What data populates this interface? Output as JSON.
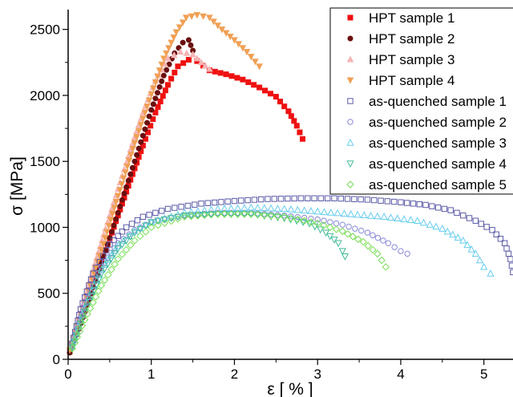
{
  "chart_data": {
    "type": "scatter",
    "title": "",
    "xlabel": "ε [ % ]",
    "ylabel": "σ [MPa]",
    "xlim": [
      0,
      5.35
    ],
    "ylim": [
      0,
      2650
    ],
    "x_ticks": [
      0,
      1,
      2,
      3,
      4,
      5
    ],
    "y_ticks": [
      0,
      500,
      1000,
      1500,
      2000,
      2500
    ],
    "grid": false,
    "legend_position": "top-right",
    "series": [
      {
        "name": "HPT sample 1",
        "color": "#ee1111",
        "marker": "square-filled",
        "points": [
          [
            0.02,
            60
          ],
          [
            0.15,
            280
          ],
          [
            0.3,
            560
          ],
          [
            0.45,
            830
          ],
          [
            0.6,
            1090
          ],
          [
            0.75,
            1360
          ],
          [
            0.9,
            1620
          ],
          [
            1.05,
            1870
          ],
          [
            1.2,
            2080
          ],
          [
            1.32,
            2220
          ],
          [
            1.45,
            2270
          ],
          [
            1.55,
            2260
          ],
          [
            1.7,
            2190
          ],
          [
            1.9,
            2160
          ],
          [
            2.1,
            2120
          ],
          [
            2.3,
            2060
          ],
          [
            2.5,
            1990
          ],
          [
            2.65,
            1880
          ],
          [
            2.75,
            1770
          ],
          [
            2.82,
            1670
          ]
        ]
      },
      {
        "name": "HPT sample 2",
        "color": "#6b0f0f",
        "marker": "circle-filled",
        "points": [
          [
            0.02,
            50
          ],
          [
            0.2,
            360
          ],
          [
            0.4,
            730
          ],
          [
            0.6,
            1110
          ],
          [
            0.8,
            1500
          ],
          [
            1.0,
            1890
          ],
          [
            1.15,
            2150
          ],
          [
            1.28,
            2320
          ],
          [
            1.38,
            2400
          ],
          [
            1.45,
            2420
          ],
          [
            1.5,
            2340
          ]
        ]
      },
      {
        "name": "HPT sample 3",
        "color": "#f5b5b5",
        "marker": "triangle-up-filled",
        "points": [
          [
            0.02,
            80
          ],
          [
            0.15,
            360
          ],
          [
            0.3,
            680
          ],
          [
            0.45,
            990
          ],
          [
            0.6,
            1290
          ],
          [
            0.75,
            1590
          ],
          [
            0.9,
            1870
          ],
          [
            1.05,
            2110
          ],
          [
            1.2,
            2280
          ],
          [
            1.35,
            2330
          ],
          [
            1.5,
            2310
          ],
          [
            1.6,
            2250
          ],
          [
            1.7,
            2200
          ]
        ]
      },
      {
        "name": "HPT sample 4",
        "color": "#f0a055",
        "marker": "triangle-down-filled",
        "points": [
          [
            0.02,
            70
          ],
          [
            0.2,
            430
          ],
          [
            0.4,
            830
          ],
          [
            0.6,
            1240
          ],
          [
            0.8,
            1640
          ],
          [
            1.0,
            2010
          ],
          [
            1.15,
            2280
          ],
          [
            1.3,
            2480
          ],
          [
            1.42,
            2590
          ],
          [
            1.55,
            2610
          ],
          [
            1.7,
            2590
          ],
          [
            1.85,
            2500
          ],
          [
            2.0,
            2420
          ],
          [
            2.15,
            2330
          ],
          [
            2.3,
            2220
          ]
        ]
      },
      {
        "name": "as-quenched sample 1",
        "color": "#5a5aa8",
        "marker": "square-open",
        "points": [
          [
            0.05,
            120
          ],
          [
            0.15,
            380
          ],
          [
            0.3,
            650
          ],
          [
            0.5,
            870
          ],
          [
            0.7,
            1000
          ],
          [
            0.9,
            1080
          ],
          [
            1.2,
            1140
          ],
          [
            1.6,
            1180
          ],
          [
            2.0,
            1200
          ],
          [
            2.4,
            1215
          ],
          [
            2.8,
            1220
          ],
          [
            3.2,
            1220
          ],
          [
            3.6,
            1210
          ],
          [
            4.0,
            1190
          ],
          [
            4.3,
            1170
          ],
          [
            4.6,
            1130
          ],
          [
            4.9,
            1050
          ],
          [
            5.1,
            980
          ],
          [
            5.25,
            880
          ],
          [
            5.32,
            760
          ],
          [
            5.35,
            660
          ]
        ]
      },
      {
        "name": "as-quenched sample 2",
        "color": "#8a8ad8",
        "marker": "circle-open",
        "points": [
          [
            0.05,
            110
          ],
          [
            0.2,
            420
          ],
          [
            0.4,
            700
          ],
          [
            0.6,
            880
          ],
          [
            0.8,
            980
          ],
          [
            1.0,
            1040
          ],
          [
            1.4,
            1090
          ],
          [
            1.8,
            1110
          ],
          [
            2.2,
            1110
          ],
          [
            2.6,
            1090
          ],
          [
            3.0,
            1060
          ],
          [
            3.3,
            1020
          ],
          [
            3.6,
            960
          ],
          [
            3.85,
            880
          ],
          [
            4.0,
            820
          ],
          [
            4.08,
            800
          ]
        ]
      },
      {
        "name": "as-quenched sample 3",
        "color": "#66ccee",
        "marker": "triangle-up-open",
        "points": [
          [
            0.05,
            100
          ],
          [
            0.2,
            390
          ],
          [
            0.4,
            680
          ],
          [
            0.6,
            860
          ],
          [
            0.8,
            970
          ],
          [
            1.0,
            1040
          ],
          [
            1.4,
            1110
          ],
          [
            1.8,
            1140
          ],
          [
            2.2,
            1150
          ],
          [
            2.6,
            1140
          ],
          [
            3.0,
            1120
          ],
          [
            3.4,
            1100
          ],
          [
            3.8,
            1080
          ],
          [
            4.2,
            1050
          ],
          [
            4.5,
            990
          ],
          [
            4.75,
            900
          ],
          [
            4.9,
            800
          ],
          [
            5.0,
            700
          ],
          [
            5.08,
            650
          ]
        ]
      },
      {
        "name": "as-quenched sample 4",
        "color": "#44bb99",
        "marker": "triangle-down-open",
        "points": [
          [
            0.05,
            90
          ],
          [
            0.2,
            360
          ],
          [
            0.4,
            650
          ],
          [
            0.6,
            840
          ],
          [
            0.8,
            960
          ],
          [
            1.0,
            1040
          ],
          [
            1.4,
            1090
          ],
          [
            1.8,
            1100
          ],
          [
            2.2,
            1100
          ],
          [
            2.6,
            1070
          ],
          [
            2.9,
            1030
          ],
          [
            3.1,
            960
          ],
          [
            3.25,
            880
          ],
          [
            3.3,
            820
          ],
          [
            3.33,
            780
          ]
        ]
      },
      {
        "name": "as-quenched sample 5",
        "color": "#77dd55",
        "marker": "diamond-open",
        "points": [
          [
            0.05,
            80
          ],
          [
            0.2,
            300
          ],
          [
            0.4,
            560
          ],
          [
            0.6,
            760
          ],
          [
            0.8,
            900
          ],
          [
            1.0,
            1000
          ],
          [
            1.4,
            1080
          ],
          [
            1.8,
            1100
          ],
          [
            2.2,
            1100
          ],
          [
            2.6,
            1080
          ],
          [
            3.0,
            1030
          ],
          [
            3.3,
            970
          ],
          [
            3.55,
            890
          ],
          [
            3.72,
            800
          ],
          [
            3.82,
            700
          ]
        ]
      }
    ]
  }
}
